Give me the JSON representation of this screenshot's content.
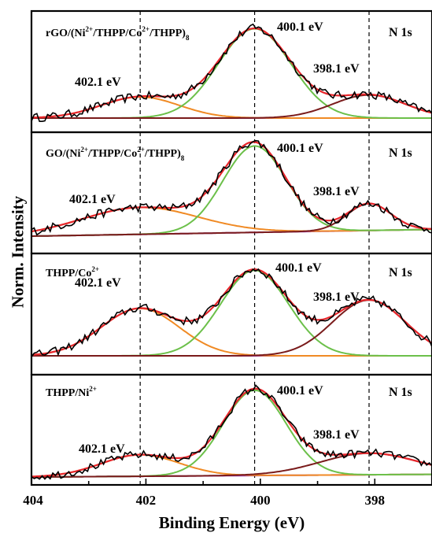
{
  "chart_data": {
    "type": "line",
    "xlabel": "Binding Energy (eV)",
    "ylabel": "Norm. Intensity",
    "xlim": [
      404,
      397
    ],
    "x_reversed": true,
    "x_ticks": [
      "404",
      "402",
      "400",
      "398"
    ],
    "reference_lines_eV": [
      402.1,
      400.1,
      398.1
    ],
    "colors": {
      "raw": "#000000",
      "fit": "#e8262b",
      "peak_402": "#f08a24",
      "peak_400": "#6cc04a",
      "peak_398": "#7a1b1b",
      "background": "#a040c0"
    },
    "panels": [
      {
        "sample": {
          "pre": "rGO/(Ni",
          "s1": "2+",
          "m1": "/THPP/Co",
          "s2": "2+",
          "m2": "/THPP)",
          "sub": "8"
        },
        "label": "N 1s",
        "peak_labels": [
          "402.1 eV",
          "400.1 eV",
          "398.1 eV"
        ],
        "peaks": [
          {
            "name": "402.1 eV",
            "center": 402.1,
            "amplitude": 0.22,
            "fwhm": 1.6
          },
          {
            "name": "400.1 eV",
            "center": 400.1,
            "amplitude": 0.93,
            "fwhm": 1.5
          },
          {
            "name": "398.1 eV",
            "center": 398.1,
            "amplitude": 0.24,
            "fwhm": 1.5
          }
        ],
        "baseline": [
          0.0,
          0.0
        ]
      },
      {
        "sample": {
          "pre": "GO/(Ni",
          "s1": "2+",
          "m1": "/THPP/Co",
          "s2": "2+",
          "m2": "/THPP)",
          "sub": "8"
        },
        "label": "N 1s",
        "peak_labels": [
          "402.1 eV",
          "400.1 eV",
          "398.1 eV"
        ],
        "peaks": [
          {
            "name": "402.1 eV",
            "center": 402.1,
            "amplitude": 0.28,
            "fwhm": 2.4
          },
          {
            "name": "400.1 eV",
            "center": 400.1,
            "amplitude": 0.9,
            "fwhm": 1.3
          },
          {
            "name": "398.1 eV",
            "center": 398.1,
            "amplitude": 0.28,
            "fwhm": 0.9
          }
        ],
        "baseline": [
          0.0,
          0.07
        ]
      },
      {
        "sample": {
          "pre": "THPP/Co",
          "s1": "2+",
          "m1": "",
          "s2": "",
          "m2": "",
          "sub": ""
        },
        "label": "N 1s",
        "peak_labels": [
          "402.1 eV",
          "400.1 eV",
          "398.1 eV"
        ],
        "peaks": [
          {
            "name": "402.1 eV",
            "center": 402.1,
            "amplitude": 0.51,
            "fwhm": 1.6
          },
          {
            "name": "400.1 eV",
            "center": 400.1,
            "amplitude": 0.92,
            "fwhm": 1.4
          },
          {
            "name": "398.1 eV",
            "center": 398.1,
            "amplitude": 0.6,
            "fwhm": 1.5
          }
        ],
        "baseline": [
          0.0,
          0.0
        ]
      },
      {
        "sample": {
          "pre": "THPP/Ni",
          "s1": "2+",
          "m1": "",
          "s2": "",
          "m2": "",
          "sub": ""
        },
        "label": "N 1s",
        "peak_labels": [
          "402.1 eV",
          "400.1 eV",
          "398.1 eV"
        ],
        "peaks": [
          {
            "name": "402.1 eV",
            "center": 402.1,
            "amplitude": 0.24,
            "fwhm": 1.6
          },
          {
            "name": "400.1 eV",
            "center": 400.1,
            "amplitude": 0.95,
            "fwhm": 1.3
          },
          {
            "name": "398.1 eV",
            "center": 398.1,
            "amplitude": 0.24,
            "fwhm": 2.0
          }
        ],
        "baseline": [
          0.0,
          0.03
        ]
      }
    ]
  }
}
